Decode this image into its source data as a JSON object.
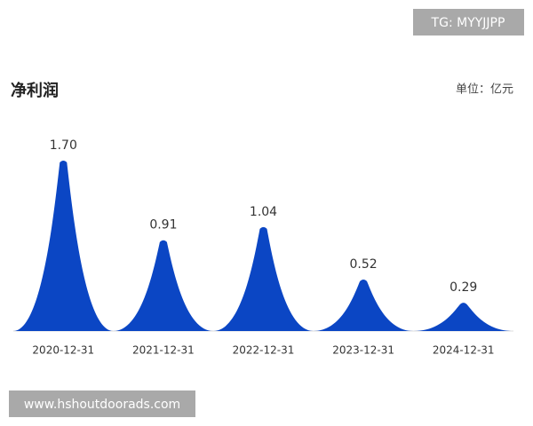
{
  "chart_data": {
    "type": "bar",
    "title": "净利润",
    "unit": "单位：亿元",
    "categories": [
      "2020-12-31",
      "2021-12-31",
      "2022-12-31",
      "2023-12-31",
      "2024-12-31"
    ],
    "values": [
      1.7,
      0.91,
      1.04,
      0.52,
      0.29
    ],
    "value_labels": [
      "1.70",
      "0.91",
      "1.04",
      "0.52",
      "0.29"
    ],
    "color": "#0b46c4",
    "watermarks": [
      "TG: MYYJJPP",
      "www.hshoutdoorads.com"
    ]
  }
}
